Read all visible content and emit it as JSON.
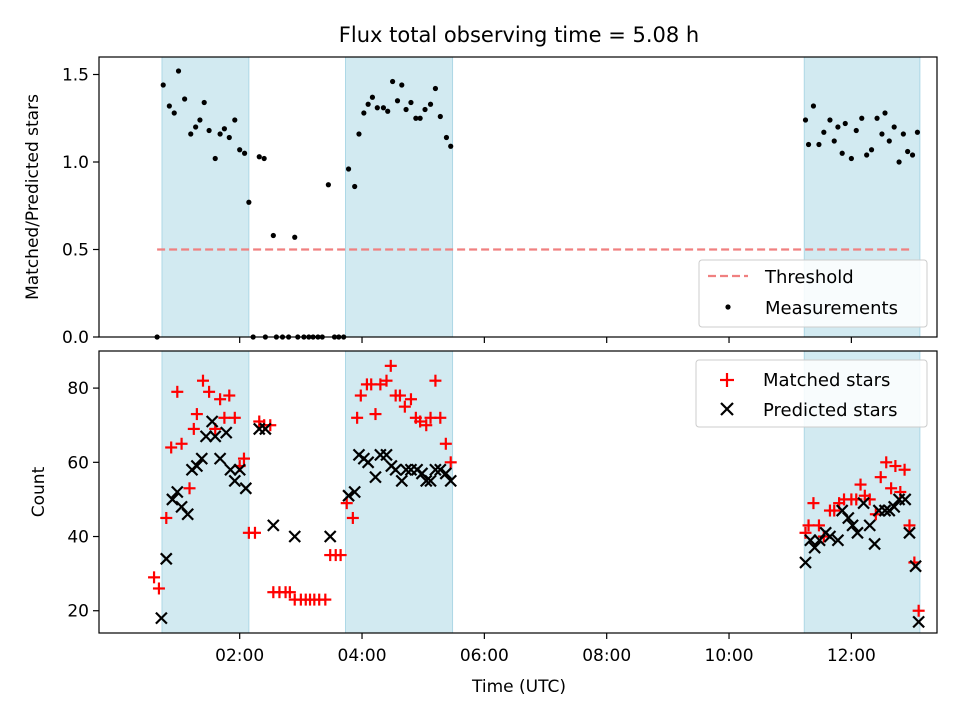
{
  "figure": {
    "title": "Flux total observing time = 5.08 h",
    "background": "#ffffff",
    "shade_color": "#add8e6",
    "shade_intervals": [
      [
        0.73,
        2.15
      ],
      [
        3.73,
        5.48
      ],
      [
        11.23,
        13.12
      ]
    ]
  },
  "chart_data": [
    {
      "type": "scatter",
      "title": "Flux total observing time = 5.08 h",
      "xlabel": "",
      "ylabel": "Matched/Predicted stars",
      "xlim": [
        -0.3,
        13.4
      ],
      "ylim": [
        0.0,
        1.6
      ],
      "yticks": [
        0.0,
        0.5,
        1.0,
        1.5
      ],
      "ytick_labels": [
        "0.0",
        "0.5",
        "1.0",
        "1.5"
      ],
      "grid": false,
      "legend_position": "lower-right",
      "threshold": {
        "name": "Threshold",
        "value": 0.5,
        "x_range": [
          0.65,
          13.0
        ],
        "color": "#f08080"
      },
      "series": [
        {
          "name": "Measurements",
          "color": "#000000",
          "marker": "dot",
          "points": [
            [
              0.65,
              0.0
            ],
            [
              0.75,
              1.44
            ],
            [
              0.85,
              1.32
            ],
            [
              0.93,
              1.28
            ],
            [
              1.0,
              1.52
            ],
            [
              1.1,
              1.36
            ],
            [
              1.2,
              1.16
            ],
            [
              1.28,
              1.2
            ],
            [
              1.35,
              1.24
            ],
            [
              1.42,
              1.34
            ],
            [
              1.5,
              1.18
            ],
            [
              1.6,
              1.02
            ],
            [
              1.68,
              1.16
            ],
            [
              1.75,
              1.19
            ],
            [
              1.83,
              1.14
            ],
            [
              1.92,
              1.24
            ],
            [
              2.0,
              1.07
            ],
            [
              2.08,
              1.05
            ],
            [
              2.15,
              0.77
            ],
            [
              2.22,
              0.0
            ],
            [
              2.32,
              1.03
            ],
            [
              2.4,
              1.02
            ],
            [
              2.42,
              0.0
            ],
            [
              2.55,
              0.58
            ],
            [
              2.6,
              0.0
            ],
            [
              2.7,
              0.0
            ],
            [
              2.8,
              0.0
            ],
            [
              2.9,
              0.57
            ],
            [
              2.95,
              0.0
            ],
            [
              3.05,
              0.0
            ],
            [
              3.13,
              0.0
            ],
            [
              3.2,
              0.0
            ],
            [
              3.28,
              0.0
            ],
            [
              3.35,
              0.0
            ],
            [
              3.45,
              0.87
            ],
            [
              3.55,
              0.0
            ],
            [
              3.62,
              0.0
            ],
            [
              3.7,
              0.0
            ],
            [
              3.78,
              0.96
            ],
            [
              3.88,
              0.86
            ],
            [
              3.95,
              1.16
            ],
            [
              4.03,
              1.28
            ],
            [
              4.1,
              1.33
            ],
            [
              4.17,
              1.37
            ],
            [
              4.25,
              1.31
            ],
            [
              4.35,
              1.31
            ],
            [
              4.42,
              1.29
            ],
            [
              4.5,
              1.46
            ],
            [
              4.58,
              1.35
            ],
            [
              4.65,
              1.44
            ],
            [
              4.72,
              1.3
            ],
            [
              4.8,
              1.34
            ],
            [
              4.88,
              1.25
            ],
            [
              4.95,
              1.25
            ],
            [
              5.03,
              1.3
            ],
            [
              5.12,
              1.33
            ],
            [
              5.2,
              1.42
            ],
            [
              5.28,
              1.26
            ],
            [
              5.38,
              1.14
            ],
            [
              5.45,
              1.09
            ],
            [
              11.25,
              1.24
            ],
            [
              11.3,
              1.1
            ],
            [
              11.38,
              1.32
            ],
            [
              11.47,
              1.1
            ],
            [
              11.55,
              1.17
            ],
            [
              11.65,
              1.24
            ],
            [
              11.72,
              1.12
            ],
            [
              11.78,
              1.2
            ],
            [
              11.85,
              1.05
            ],
            [
              11.9,
              1.22
            ],
            [
              12.0,
              1.02
            ],
            [
              12.08,
              1.18
            ],
            [
              12.17,
              1.25
            ],
            [
              12.25,
              1.04
            ],
            [
              12.33,
              1.07
            ],
            [
              12.42,
              1.25
            ],
            [
              12.5,
              1.16
            ],
            [
              12.55,
              1.28
            ],
            [
              12.62,
              1.12
            ],
            [
              12.7,
              1.2
            ],
            [
              12.78,
              1.0
            ],
            [
              12.85,
              1.16
            ],
            [
              12.92,
              1.06
            ],
            [
              13.0,
              1.04
            ],
            [
              13.08,
              1.17
            ]
          ]
        }
      ]
    },
    {
      "type": "scatter",
      "title": "",
      "xlabel": "Time (UTC)",
      "ylabel": "Count",
      "xlim": [
        -0.3,
        13.4
      ],
      "ylim": [
        14,
        90
      ],
      "yticks": [
        20,
        40,
        60,
        80
      ],
      "ytick_labels": [
        "20",
        "40",
        "60",
        "80"
      ],
      "xticks": [
        2,
        4,
        6,
        8,
        10,
        12
      ],
      "xtick_labels": [
        "02:00",
        "04:00",
        "06:00",
        "08:00",
        "10:00",
        "12:00"
      ],
      "grid": false,
      "legend_position": "upper-right",
      "series": [
        {
          "name": "Matched stars",
          "color": "#ff0000",
          "marker": "plus",
          "points": [
            [
              0.6,
              29
            ],
            [
              0.68,
              26
            ],
            [
              0.8,
              45
            ],
            [
              0.88,
              64
            ],
            [
              0.98,
              79
            ],
            [
              1.05,
              65
            ],
            [
              1.18,
              53
            ],
            [
              1.25,
              69
            ],
            [
              1.3,
              73
            ],
            [
              1.4,
              82
            ],
            [
              1.5,
              79
            ],
            [
              1.6,
              69
            ],
            [
              1.68,
              77
            ],
            [
              1.75,
              72
            ],
            [
              1.83,
              78
            ],
            [
              1.92,
              72
            ],
            [
              2.0,
              59
            ],
            [
              2.07,
              61
            ],
            [
              2.15,
              41
            ],
            [
              2.25,
              41
            ],
            [
              2.32,
              71
            ],
            [
              2.4,
              70
            ],
            [
              2.5,
              70
            ],
            [
              2.55,
              25
            ],
            [
              2.65,
              25
            ],
            [
              2.75,
              25
            ],
            [
              2.82,
              25
            ],
            [
              2.9,
              23
            ],
            [
              3.0,
              23
            ],
            [
              3.08,
              23
            ],
            [
              3.15,
              23
            ],
            [
              3.22,
              23
            ],
            [
              3.3,
              23
            ],
            [
              3.4,
              23
            ],
            [
              3.48,
              35
            ],
            [
              3.57,
              35
            ],
            [
              3.65,
              35
            ],
            [
              3.75,
              49
            ],
            [
              3.85,
              45
            ],
            [
              3.92,
              72
            ],
            [
              3.98,
              78
            ],
            [
              4.08,
              81
            ],
            [
              4.15,
              81
            ],
            [
              4.22,
              73
            ],
            [
              4.3,
              81
            ],
            [
              4.4,
              82
            ],
            [
              4.47,
              86
            ],
            [
              4.55,
              78
            ],
            [
              4.62,
              78
            ],
            [
              4.7,
              75
            ],
            [
              4.8,
              77
            ],
            [
              4.88,
              72
            ],
            [
              4.95,
              71
            ],
            [
              5.05,
              70
            ],
            [
              5.12,
              72
            ],
            [
              5.2,
              82
            ],
            [
              5.28,
              72
            ],
            [
              5.37,
              65
            ],
            [
              5.45,
              60
            ],
            [
              11.25,
              41
            ],
            [
              11.3,
              43
            ],
            [
              11.38,
              49
            ],
            [
              11.47,
              43
            ],
            [
              11.55,
              40
            ],
            [
              11.65,
              47
            ],
            [
              11.72,
              47
            ],
            [
              11.8,
              49
            ],
            [
              11.88,
              50
            ],
            [
              12.0,
              50
            ],
            [
              12.08,
              50
            ],
            [
              12.15,
              54
            ],
            [
              12.22,
              51
            ],
            [
              12.3,
              50
            ],
            [
              12.4,
              46
            ],
            [
              12.48,
              56
            ],
            [
              12.57,
              60
            ],
            [
              12.65,
              53
            ],
            [
              12.72,
              59
            ],
            [
              12.8,
              52
            ],
            [
              12.87,
              58
            ],
            [
              12.95,
              43
            ],
            [
              13.03,
              33
            ],
            [
              13.1,
              20
            ]
          ]
        },
        {
          "name": "Predicted stars",
          "color": "#000000",
          "marker": "x",
          "points": [
            [
              0.72,
              18
            ],
            [
              0.8,
              34
            ],
            [
              0.9,
              50
            ],
            [
              0.98,
              52
            ],
            [
              1.05,
              48
            ],
            [
              1.15,
              46
            ],
            [
              1.22,
              58
            ],
            [
              1.3,
              59
            ],
            [
              1.38,
              61
            ],
            [
              1.45,
              67
            ],
            [
              1.55,
              71
            ],
            [
              1.6,
              67
            ],
            [
              1.68,
              61
            ],
            [
              1.78,
              68
            ],
            [
              1.85,
              58
            ],
            [
              1.92,
              55
            ],
            [
              2.0,
              58
            ],
            [
              2.1,
              53
            ],
            [
              2.32,
              69
            ],
            [
              2.42,
              69
            ],
            [
              2.55,
              43
            ],
            [
              2.9,
              40
            ],
            [
              3.48,
              40
            ],
            [
              3.78,
              51
            ],
            [
              3.88,
              52
            ],
            [
              3.95,
              62
            ],
            [
              4.03,
              61
            ],
            [
              4.1,
              60
            ],
            [
              4.22,
              56
            ],
            [
              4.3,
              62
            ],
            [
              4.4,
              62
            ],
            [
              4.48,
              59
            ],
            [
              4.55,
              58
            ],
            [
              4.65,
              55
            ],
            [
              4.72,
              58
            ],
            [
              4.8,
              58
            ],
            [
              4.9,
              58
            ],
            [
              4.98,
              57
            ],
            [
              5.05,
              55
            ],
            [
              5.12,
              55
            ],
            [
              5.2,
              58
            ],
            [
              5.28,
              58
            ],
            [
              5.37,
              57
            ],
            [
              5.45,
              55
            ],
            [
              11.25,
              33
            ],
            [
              11.33,
              39
            ],
            [
              11.4,
              37
            ],
            [
              11.48,
              39
            ],
            [
              11.58,
              41
            ],
            [
              11.65,
              40
            ],
            [
              11.78,
              39
            ],
            [
              11.85,
              47
            ],
            [
              11.95,
              45
            ],
            [
              12.02,
              43
            ],
            [
              12.1,
              41
            ],
            [
              12.2,
              49
            ],
            [
              12.3,
              43
            ],
            [
              12.38,
              38
            ],
            [
              12.45,
              47
            ],
            [
              12.55,
              47
            ],
            [
              12.62,
              47
            ],
            [
              12.7,
              48
            ],
            [
              12.78,
              50
            ],
            [
              12.88,
              50
            ],
            [
              12.95,
              41
            ],
            [
              13.05,
              32
            ],
            [
              13.1,
              17
            ]
          ]
        }
      ]
    }
  ]
}
